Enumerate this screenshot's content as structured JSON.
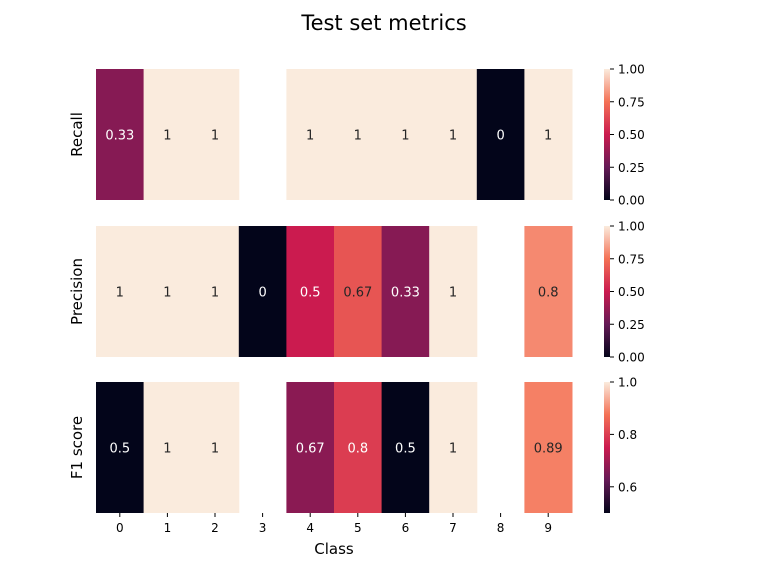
{
  "chart_data": {
    "type": "heatmap",
    "title": "Test set metrics",
    "xlabel": "Class",
    "x_ticks": [
      "0",
      "1",
      "2",
      "3",
      "4",
      "5",
      "6",
      "7",
      "8",
      "9"
    ],
    "colormap": "rocket",
    "rows": [
      {
        "ylabel": "Recall",
        "values": [
          0.33,
          1,
          1,
          null,
          1,
          1,
          1,
          1,
          0,
          1
        ],
        "cell_labels": [
          "0.33",
          "1",
          "1",
          "",
          "1",
          "1",
          "1",
          "1",
          "0",
          "1"
        ],
        "colorbar": {
          "range": [
            0,
            1
          ],
          "ticks": [
            "0.00",
            "0.25",
            "0.50",
            "0.75",
            "1.00"
          ]
        }
      },
      {
        "ylabel": "Precision",
        "values": [
          1,
          1,
          1,
          0,
          0.5,
          0.67,
          0.33,
          1,
          null,
          0.8
        ],
        "cell_labels": [
          "1",
          "1",
          "1",
          "0",
          "0.5",
          "0.67",
          "0.33",
          "1",
          "",
          "0.8"
        ],
        "colorbar": {
          "range": [
            0,
            1
          ],
          "ticks": [
            "0.00",
            "0.25",
            "0.50",
            "0.75",
            "1.00"
          ]
        }
      },
      {
        "ylabel": "F1 score",
        "values": [
          0.5,
          1,
          1,
          null,
          0.67,
          0.8,
          0.5,
          1,
          null,
          0.89
        ],
        "cell_labels": [
          "0.5",
          "1",
          "1",
          "",
          "0.67",
          "0.8",
          "0.5",
          "1",
          "",
          "0.89"
        ],
        "colorbar": {
          "range": [
            0.5,
            1
          ],
          "ticks": [
            "0.6",
            "0.8",
            "1.0"
          ]
        }
      }
    ]
  }
}
